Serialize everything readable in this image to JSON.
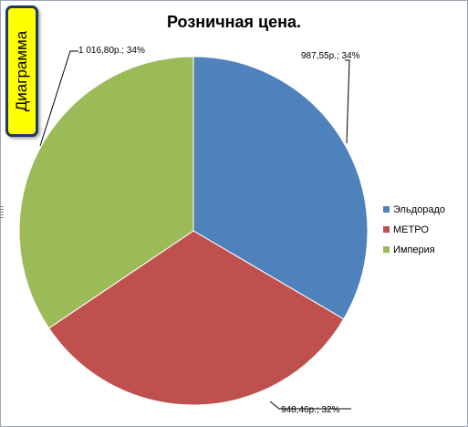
{
  "badge": {
    "label": "Диаграмма"
  },
  "chart_data": {
    "type": "pie",
    "title": "Розничная цена.",
    "categories": [
      "Эльдорадо",
      "МЕТРО",
      "Империя"
    ],
    "values": [
      987.55,
      948.46,
      1016.8
    ],
    "value_labels": [
      "987,55р.; 34%",
      "948,46р.; 32%",
      "1 016,80р.; 34%"
    ],
    "colors": [
      "#4f81bd",
      "#c0504d",
      "#9bbb59"
    ],
    "legend_position": "right",
    "start_angle_deg": 0
  }
}
